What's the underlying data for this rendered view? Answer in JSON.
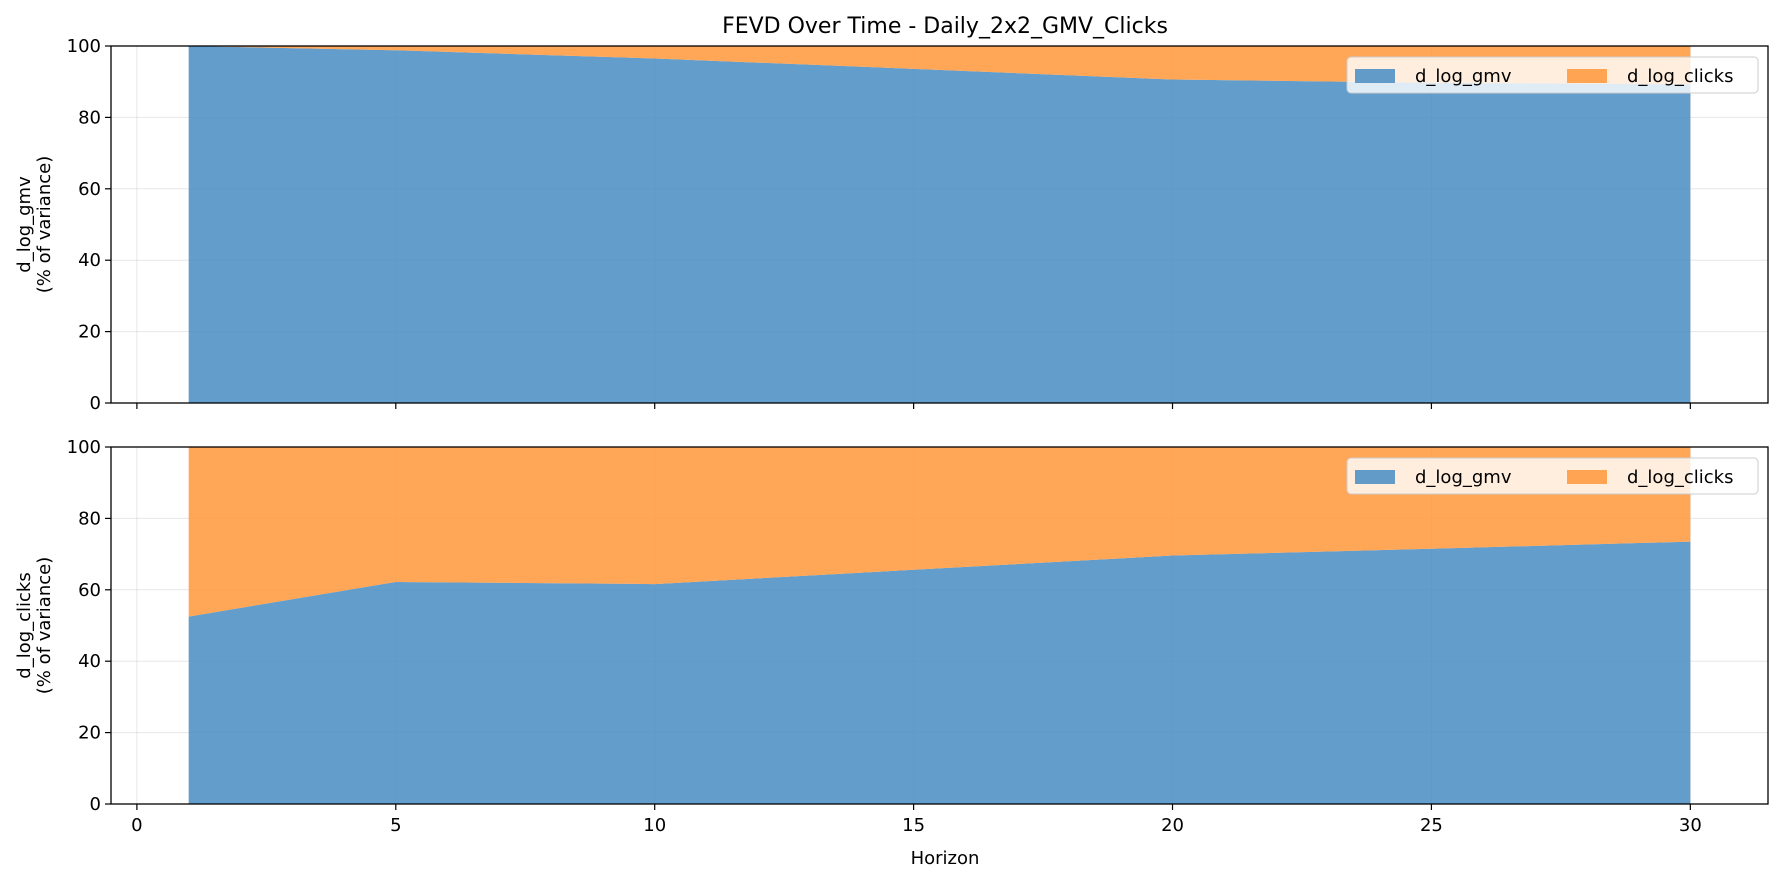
{
  "chart_data": {
    "type": "area",
    "stacked": true,
    "normalized_percent": true,
    "title": "FEVD Over Time - Daily_2x2_GMV_Clicks",
    "xlabel": "Horizon",
    "x_ticks": [
      0,
      5,
      10,
      15,
      20,
      25,
      30
    ],
    "xlim": [
      -0.5,
      31.5
    ],
    "grid": true,
    "legend_position": "upper right",
    "legend_columns": 2,
    "colors": {
      "d_log_gmv": "#4c8fc4",
      "d_log_clicks": "#ff9a40"
    },
    "panels": [
      {
        "name": "panel-gmv",
        "ylabel_line1": "d_log_gmv",
        "ylabel_line2": "(% of variance)",
        "ylim": [
          0,
          100
        ],
        "y_ticks": [
          0,
          20,
          40,
          60,
          80,
          100
        ],
        "x": [
          1,
          5,
          10,
          15,
          20,
          25,
          30
        ],
        "series": [
          {
            "name": "d_log_gmv",
            "values": [
              100,
              98.8,
              96.5,
              93.6,
              90.6,
              89.7,
              89.3
            ]
          },
          {
            "name": "d_log_clicks",
            "values": [
              0,
              1.2,
              3.5,
              6.4,
              9.4,
              10.3,
              10.7
            ]
          }
        ]
      },
      {
        "name": "panel-clicks",
        "ylabel_line1": "d_log_clicks",
        "ylabel_line2": "(% of variance)",
        "ylim": [
          0,
          100
        ],
        "y_ticks": [
          0,
          20,
          40,
          60,
          80,
          100
        ],
        "x": [
          1,
          5,
          10,
          15,
          20,
          25,
          30
        ],
        "series": [
          {
            "name": "d_log_gmv",
            "values": [
              52.5,
              62.2,
              61.6,
              65.6,
              69.6,
              71.5,
              73.5
            ]
          },
          {
            "name": "d_log_clicks",
            "values": [
              47.5,
              37.8,
              38.4,
              34.4,
              30.4,
              28.5,
              26.5
            ]
          }
        ]
      }
    ]
  }
}
